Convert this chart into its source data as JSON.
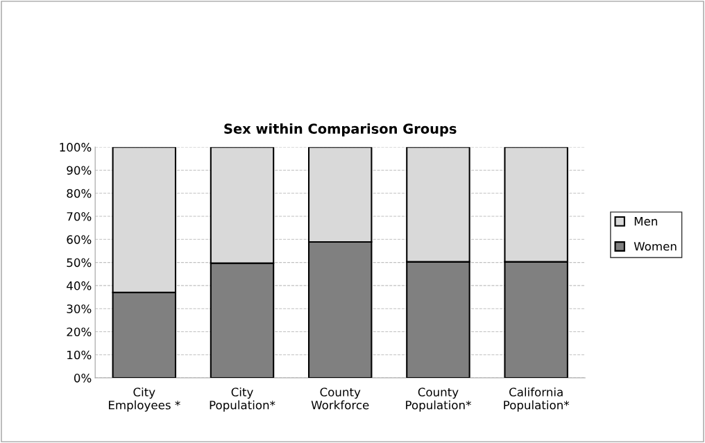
{
  "chart_data": {
    "type": "bar",
    "title": "Sex within Comparison Groups",
    "stacked": true,
    "categories": [
      "City\nEmployees *",
      "City\nPopulation*",
      "County\nWorkforce",
      "County\nPopulation*",
      "California\nPopulation*"
    ],
    "series": [
      {
        "name": "Women",
        "color": "#808080",
        "values": [
          37.0,
          49.7,
          58.9,
          50.3,
          50.3
        ]
      },
      {
        "name": "Men",
        "color": "#d9d9d9",
        "values": [
          63.0,
          50.3,
          41.1,
          49.7,
          49.7
        ]
      }
    ],
    "ylim": [
      0,
      100
    ],
    "yticks": [
      {
        "value": 0,
        "label": "0%"
      },
      {
        "value": 10,
        "label": "10%"
      },
      {
        "value": 20,
        "label": "20%"
      },
      {
        "value": 30,
        "label": "30%"
      },
      {
        "value": 40,
        "label": "40%"
      },
      {
        "value": 50,
        "label": "50%"
      },
      {
        "value": 60,
        "label": "60%"
      },
      {
        "value": 70,
        "label": "70%"
      },
      {
        "value": 80,
        "label": "80%"
      },
      {
        "value": 90,
        "label": "90%"
      },
      {
        "value": 100,
        "label": "100%"
      }
    ],
    "grid": "y",
    "legend": "right"
  }
}
